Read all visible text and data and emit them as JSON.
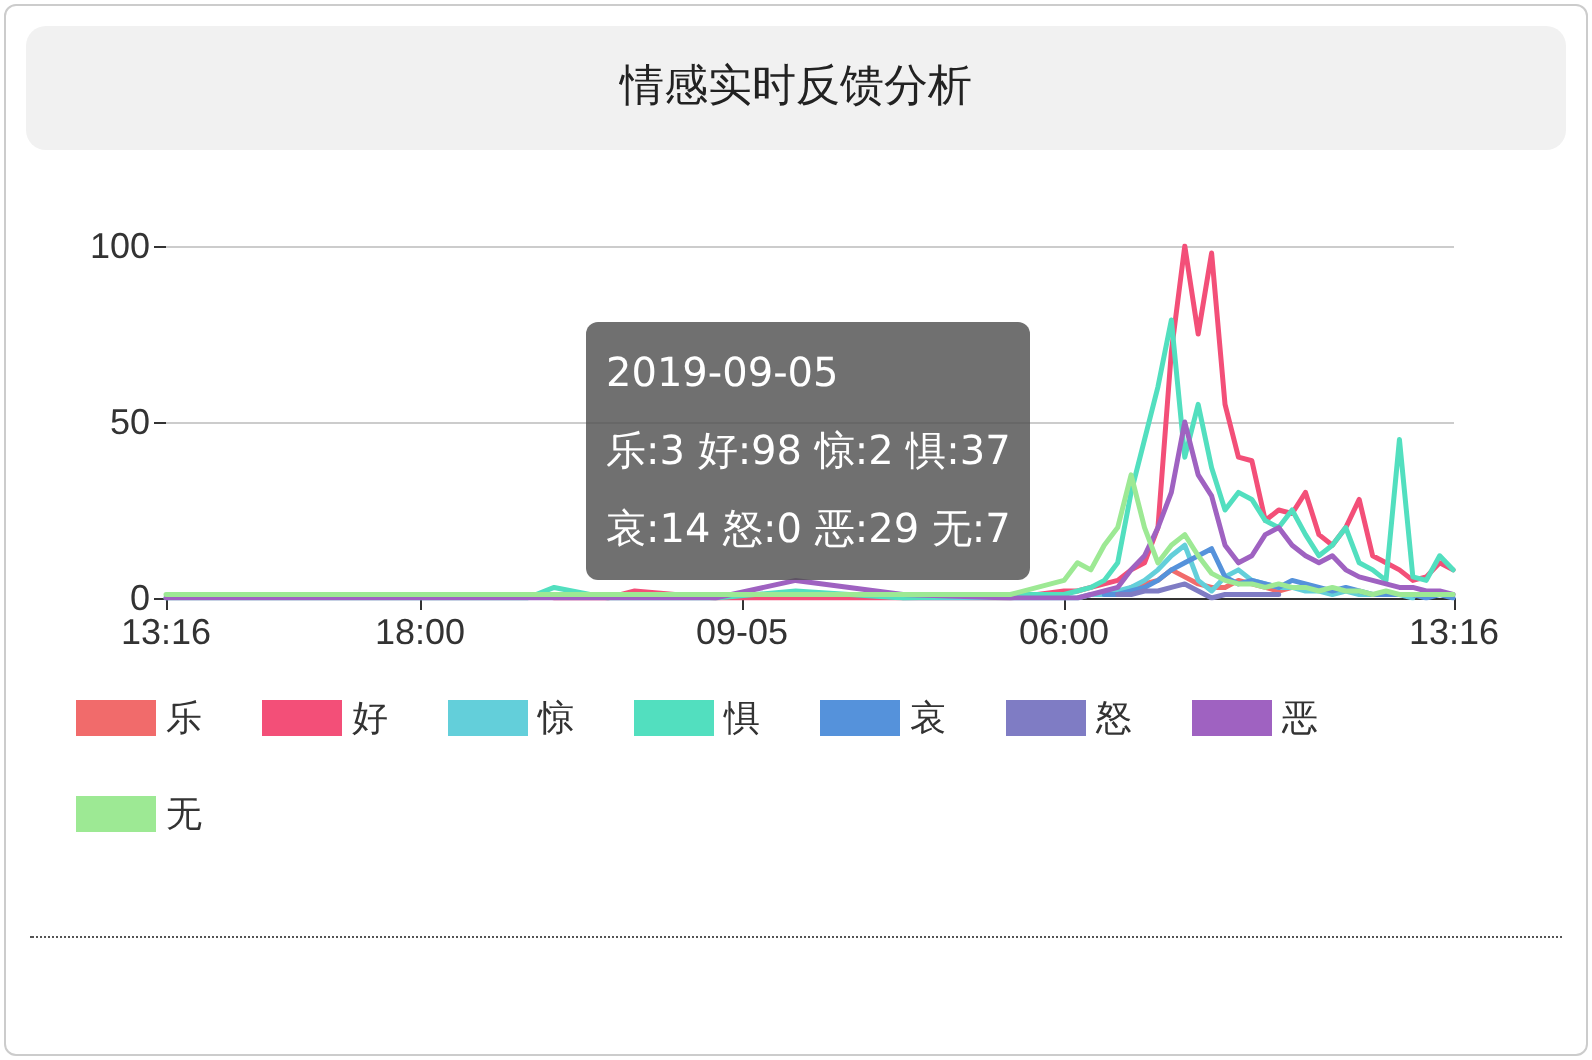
{
  "chart_data": {
    "type": "line",
    "title": "情感实时反馈分析",
    "x": [
      "2019-09-04T13:16",
      "2019-09-04T20:00",
      "2019-09-04T20:30",
      "2019-09-04T21:30",
      "2019-09-04T22:00",
      "2019-09-04T23:30",
      "2019-09-05T01:00",
      "2019-09-05T03:00",
      "2019-09-05T05:00",
      "2019-09-05T06:00",
      "2019-09-05T06:15",
      "2019-09-05T06:30",
      "2019-09-05T06:45",
      "2019-09-05T07:00",
      "2019-09-05T07:15",
      "2019-09-05T07:30",
      "2019-09-05T07:45",
      "2019-09-05T08:00",
      "2019-09-05T08:15",
      "2019-09-05T08:30",
      "2019-09-05T08:45",
      "2019-09-05T09:00",
      "2019-09-05T09:15",
      "2019-09-05T09:30",
      "2019-09-05T09:45",
      "2019-09-05T10:00",
      "2019-09-05T10:15",
      "2019-09-05T10:30",
      "2019-09-05T10:45",
      "2019-09-05T11:00",
      "2019-09-05T11:15",
      "2019-09-05T11:30",
      "2019-09-05T11:45",
      "2019-09-05T12:00",
      "2019-09-05T12:15",
      "2019-09-05T12:30",
      "2019-09-05T12:45",
      "2019-09-05T13:00",
      "2019-09-05T13:15"
    ],
    "series": [
      {
        "name": "乐",
        "color": "#f16b6b",
        "values": [
          null,
          null,
          null,
          null,
          null,
          null,
          null,
          null,
          null,
          null,
          null,
          1,
          1,
          null,
          3,
          4,
          5,
          8,
          6,
          4,
          3,
          3,
          5,
          4,
          3,
          2,
          3,
          null,
          null,
          null,
          null,
          null,
          null,
          null,
          null,
          null,
          null,
          null,
          null
        ]
      },
      {
        "name": "好",
        "color": "#f34f78",
        "values": [
          null,
          null,
          0,
          0,
          2,
          0,
          0,
          0,
          0,
          2,
          2,
          3,
          4,
          5,
          8,
          10,
          20,
          70,
          100,
          75,
          98,
          55,
          40,
          39,
          22,
          25,
          24,
          30,
          18,
          15,
          20,
          28,
          12,
          10,
          8,
          5,
          6,
          10,
          8
        ]
      },
      {
        "name": "惊",
        "color": "#63cfda",
        "values": [
          null,
          null,
          null,
          null,
          null,
          null,
          null,
          0,
          0,
          0,
          0,
          1,
          1,
          2,
          3,
          5,
          8,
          12,
          15,
          5,
          2,
          6,
          8,
          5,
          4,
          3,
          3,
          2,
          2,
          1,
          2,
          1,
          1,
          1,
          1,
          0,
          null,
          null,
          null
        ]
      },
      {
        "name": "惧",
        "color": "#52dfbf",
        "values": [
          0,
          0,
          3,
          0,
          0,
          0,
          2,
          0,
          1,
          1,
          2,
          3,
          5,
          10,
          30,
          45,
          60,
          79,
          40,
          55,
          37,
          25,
          30,
          28,
          22,
          20,
          25,
          18,
          12,
          15,
          20,
          10,
          8,
          5,
          45,
          6,
          5,
          12,
          8
        ]
      },
      {
        "name": "哀",
        "color": "#5592db",
        "values": [
          null,
          null,
          null,
          null,
          null,
          null,
          null,
          null,
          null,
          null,
          null,
          null,
          1,
          1,
          2,
          3,
          5,
          8,
          10,
          12,
          14,
          6,
          4,
          5,
          4,
          3,
          5,
          4,
          3,
          2,
          3,
          2,
          1,
          1,
          1,
          1,
          0,
          1,
          0
        ]
      },
      {
        "name": "怒",
        "color": "#7f7cc4",
        "values": [
          null,
          null,
          null,
          null,
          null,
          null,
          null,
          null,
          null,
          null,
          null,
          null,
          null,
          1,
          1,
          2,
          2,
          3,
          4,
          2,
          0,
          1,
          1,
          1,
          1,
          1,
          null,
          null,
          null,
          null,
          null,
          null,
          null,
          null,
          null,
          null,
          null,
          null,
          null
        ]
      },
      {
        "name": "恶",
        "color": "#9f62c1",
        "values": [
          0,
          0,
          0,
          0,
          0,
          0,
          5,
          1,
          0,
          0,
          0,
          1,
          2,
          3,
          8,
          12,
          20,
          30,
          50,
          35,
          29,
          15,
          10,
          12,
          18,
          20,
          15,
          12,
          10,
          12,
          8,
          6,
          5,
          4,
          3,
          3,
          2,
          2,
          1
        ]
      },
      {
        "name": "无",
        "color": "#9de994",
        "values": [
          1,
          1,
          1,
          1,
          1,
          1,
          1,
          1,
          1,
          5,
          10,
          8,
          15,
          20,
          35,
          20,
          10,
          15,
          18,
          12,
          7,
          5,
          4,
          4,
          3,
          4,
          3,
          3,
          2,
          3,
          2,
          2,
          1,
          2,
          1,
          1,
          1,
          1,
          1
        ]
      }
    ],
    "xlim": [
      "2019-09-04T13:16",
      "2019-09-05T13:16"
    ],
    "xticks": [
      {
        "value": "2019-09-04T13:16",
        "label": "13:16"
      },
      {
        "value": "2019-09-04T18:00",
        "label": "18:00"
      },
      {
        "value": "2019-09-05T00:00",
        "label": "09-05"
      },
      {
        "value": "2019-09-05T06:00",
        "label": "06:00"
      },
      {
        "value": "2019-09-05T13:16",
        "label": "13:16"
      }
    ],
    "ylim": [
      0,
      100
    ],
    "yticks": [
      0,
      50,
      100
    ],
    "grid": "y",
    "legend": "bottom left",
    "marker": "none",
    "line_style": "solid",
    "annotations": [
      "2019-09-05",
      "乐:3 好:98 惊:2 惧:37",
      "哀:14 怒:0 恶:29 无:7"
    ]
  }
}
